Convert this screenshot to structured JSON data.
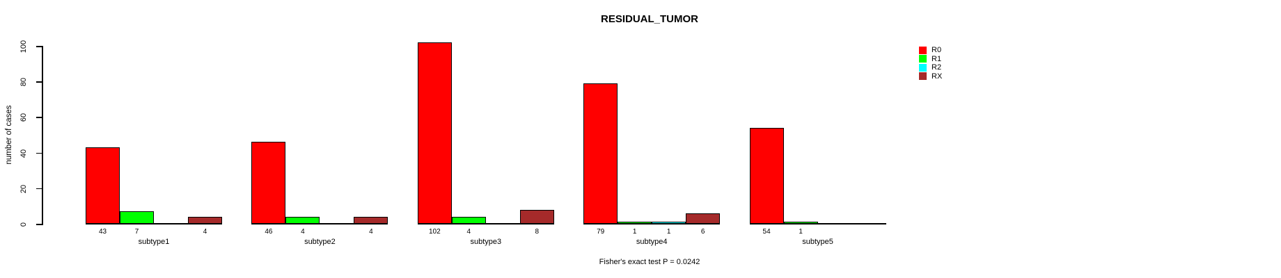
{
  "chart_data": {
    "type": "bar",
    "title": "RESIDUAL_TUMOR",
    "ylabel": "number of cases",
    "xlabel": "",
    "annotation": "Fisher's exact test P = 0.0242",
    "categories": [
      "subtype1",
      "subtype2",
      "subtype3",
      "subtype4",
      "subtype5"
    ],
    "series": [
      {
        "name": "R0",
        "color": "#FF0000",
        "values": [
          43,
          46,
          102,
          79,
          54
        ]
      },
      {
        "name": "R1",
        "color": "#00FF00",
        "values": [
          7,
          4,
          4,
          1,
          1
        ]
      },
      {
        "name": "R2",
        "color": "#00FFFF",
        "values": [
          0,
          0,
          0,
          1,
          0
        ]
      },
      {
        "name": "RX",
        "color": "#A52A2A",
        "values": [
          4,
          4,
          8,
          6,
          0
        ]
      }
    ],
    "bar_value_labels_shown_only_if_positive": true,
    "ylim": [
      0,
      100
    ],
    "yticks": [
      0,
      20,
      40,
      60,
      80,
      100
    ],
    "grid": false,
    "legend_position": "top-right",
    "background_color": "#FFFFFF",
    "text_color": "#000000"
  }
}
